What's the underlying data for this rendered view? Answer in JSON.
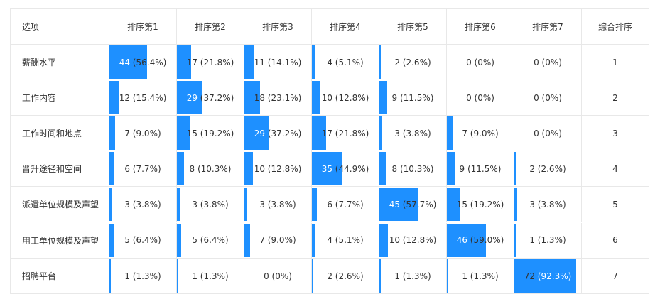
{
  "chart_data": {
    "type": "table",
    "columns": [
      "选项",
      "排序第1",
      "排序第2",
      "排序第3",
      "排序第4",
      "排序第5",
      "排序第6",
      "排序第7",
      "综合排序"
    ],
    "rows": [
      {
        "option": "薪酬水平",
        "cells": [
          {
            "count": "44",
            "pct": " (56.4%)",
            "value": 56.4
          },
          {
            "count": "17",
            "pct": " (21.8%)",
            "value": 21.8
          },
          {
            "count": "11",
            "pct": " (14.1%)",
            "value": 14.1
          },
          {
            "count": "4",
            "pct": " (5.1%)",
            "value": 5.1
          },
          {
            "count": "2",
            "pct": " (2.6%)",
            "value": 2.6
          },
          {
            "count": "0",
            "pct": " (0%)",
            "value": 0
          },
          {
            "count": "0",
            "pct": " (0%)",
            "value": 0
          }
        ],
        "rank": "1"
      },
      {
        "option": "工作内容",
        "cells": [
          {
            "count": "12",
            "pct": " (15.4%)",
            "value": 15.4
          },
          {
            "count": "29",
            "pct": " (37.2%)",
            "value": 37.2
          },
          {
            "count": "18",
            "pct": " (23.1%)",
            "value": 23.1
          },
          {
            "count": "10",
            "pct": " (12.8%)",
            "value": 12.8
          },
          {
            "count": "9",
            "pct": " (11.5%)",
            "value": 11.5
          },
          {
            "count": "0",
            "pct": " (0%)",
            "value": 0
          },
          {
            "count": "0",
            "pct": " (0%)",
            "value": 0
          }
        ],
        "rank": "2"
      },
      {
        "option": "工作时间和地点",
        "cells": [
          {
            "count": "7",
            "pct": " (9.0%)",
            "value": 9.0
          },
          {
            "count": "15",
            "pct": " (19.2%)",
            "value": 19.2
          },
          {
            "count": "29",
            "pct": " (37.2%)",
            "value": 37.2
          },
          {
            "count": "17",
            "pct": " (21.8%)",
            "value": 21.8
          },
          {
            "count": "3",
            "pct": " (3.8%)",
            "value": 3.8
          },
          {
            "count": "7",
            "pct": " (9.0%)",
            "value": 9.0
          },
          {
            "count": "0",
            "pct": " (0%)",
            "value": 0
          }
        ],
        "rank": "3"
      },
      {
        "option": "晋升途径和空间",
        "cells": [
          {
            "count": "6",
            "pct": " (7.7%)",
            "value": 7.7
          },
          {
            "count": "8",
            "pct": " (10.3%)",
            "value": 10.3
          },
          {
            "count": "10",
            "pct": " (12.8%)",
            "value": 12.8
          },
          {
            "count": "35",
            "pct": " (44.9%)",
            "value": 44.9
          },
          {
            "count": "8",
            "pct": " (10.3%)",
            "value": 10.3
          },
          {
            "count": "9",
            "pct": " (11.5%)",
            "value": 11.5
          },
          {
            "count": "2",
            "pct": " (2.6%)",
            "value": 2.6
          }
        ],
        "rank": "4"
      },
      {
        "option": "派遣单位规模及声望",
        "cells": [
          {
            "count": "3",
            "pct": " (3.8%)",
            "value": 3.8
          },
          {
            "count": "3",
            "pct": " (3.8%)",
            "value": 3.8
          },
          {
            "count": "3",
            "pct": " (3.8%)",
            "value": 3.8
          },
          {
            "count": "6",
            "pct": " (7.7%)",
            "value": 7.7
          },
          {
            "count": "45",
            "pct": " (57.7%)",
            "value": 57.7
          },
          {
            "count": "15",
            "pct": " (19.2%)",
            "value": 19.2
          },
          {
            "count": "3",
            "pct": " (3.8%)",
            "value": 3.8
          }
        ],
        "rank": "5"
      },
      {
        "option": "用工单位规模及声望",
        "cells": [
          {
            "count": "5",
            "pct": " (6.4%)",
            "value": 6.4
          },
          {
            "count": "5",
            "pct": " (6.4%)",
            "value": 6.4
          },
          {
            "count": "7",
            "pct": " (9.0%)",
            "value": 9.0
          },
          {
            "count": "4",
            "pct": " (5.1%)",
            "value": 5.1
          },
          {
            "count": "10",
            "pct": " (12.8%)",
            "value": 12.8
          },
          {
            "count": "46",
            "pct": " (59.0%)",
            "value": 59.0
          },
          {
            "count": "1",
            "pct": " (1.3%)",
            "value": 1.3
          }
        ],
        "rank": "6"
      },
      {
        "option": "招聘平台",
        "cells": [
          {
            "count": "1",
            "pct": " (1.3%)",
            "value": 1.3
          },
          {
            "count": "1",
            "pct": " (1.3%)",
            "value": 1.3
          },
          {
            "count": "0",
            "pct": " (0%)",
            "value": 0
          },
          {
            "count": "2",
            "pct": " (2.6%)",
            "value": 2.6
          },
          {
            "count": "1",
            "pct": " (1.3%)",
            "value": 1.3
          },
          {
            "count": "1",
            "pct": " (1.3%)",
            "value": 1.3
          },
          {
            "count": "72",
            "pct": " (92.3%)",
            "value": 92.3
          }
        ],
        "rank": "7"
      }
    ]
  },
  "colors": {
    "bar": "#1e90ff",
    "border": "#e8e8e8",
    "text": "#333333",
    "highlight_text": "#ffffff"
  }
}
